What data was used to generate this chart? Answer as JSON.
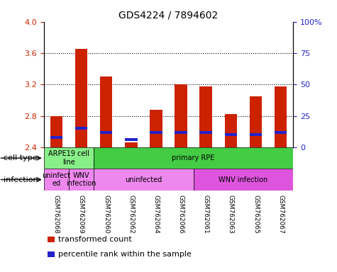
{
  "title": "GDS4224 / 7894602",
  "samples": [
    "GSM762068",
    "GSM762069",
    "GSM762060",
    "GSM762062",
    "GSM762064",
    "GSM762066",
    "GSM762061",
    "GSM762063",
    "GSM762065",
    "GSM762067"
  ],
  "transformed_counts": [
    2.8,
    3.65,
    3.3,
    2.46,
    2.88,
    3.2,
    3.18,
    2.82,
    3.05,
    3.18
  ],
  "percentile_ranks": [
    0.08,
    0.15,
    0.12,
    0.06,
    0.12,
    0.12,
    0.12,
    0.1,
    0.1,
    0.12
  ],
  "bar_base": 2.4,
  "ylim": [
    2.4,
    4.0
  ],
  "yticks": [
    2.4,
    2.8,
    3.2,
    3.6,
    4.0
  ],
  "right_yticks": [
    0,
    25,
    50,
    75,
    100
  ],
  "bar_color_red": "#cc2200",
  "bar_color_blue": "#2222cc",
  "cell_type_groups": [
    {
      "text": "ARPE19 cell\nline",
      "start": 0,
      "end": 2,
      "color": "#88ee88"
    },
    {
      "text": "primary RPE",
      "start": 2,
      "end": 10,
      "color": "#44cc44"
    }
  ],
  "infection_groups": [
    {
      "text": "uninfect\ned",
      "start": 0,
      "end": 1,
      "color": "#ee88ee"
    },
    {
      "text": "WNV\ninfection",
      "start": 1,
      "end": 2,
      "color": "#ee88ee"
    },
    {
      "text": "uninfected",
      "start": 2,
      "end": 6,
      "color": "#ee88ee"
    },
    {
      "text": "WNV infection",
      "start": 6,
      "end": 10,
      "color": "#dd55dd"
    }
  ],
  "legend_items": [
    {
      "color": "#cc2200",
      "label": "transformed count"
    },
    {
      "color": "#2222cc",
      "label": "percentile rank within the sample"
    }
  ],
  "axis_color_left": "#cc2200",
  "axis_color_right": "#2222cc"
}
